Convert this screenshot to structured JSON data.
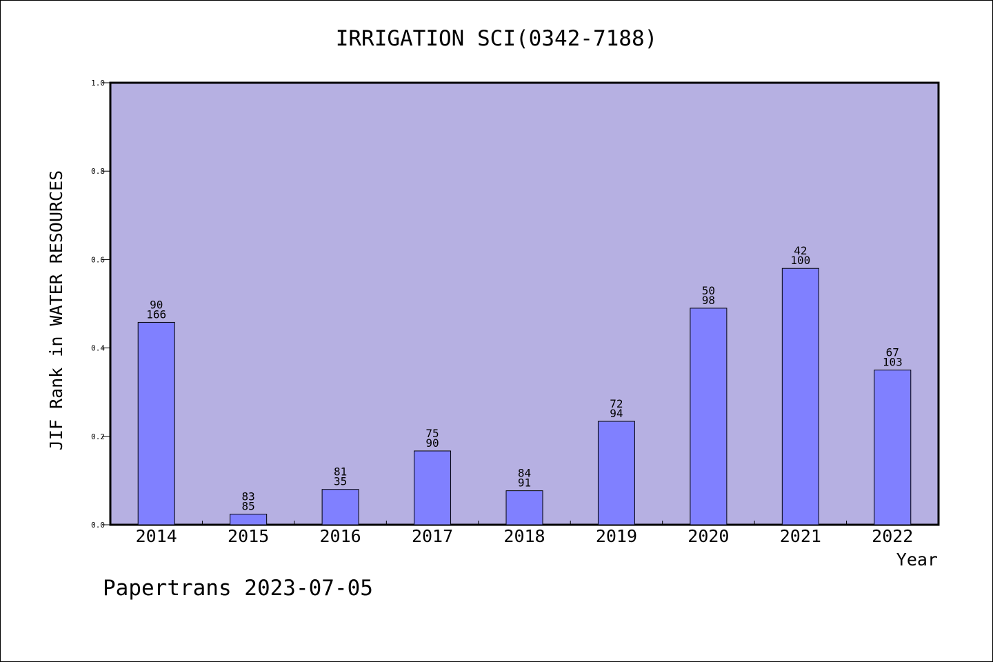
{
  "chart_data": {
    "type": "bar",
    "title": "IRRIGATION SCI(0342-7188)",
    "xlabel": "Year",
    "ylabel": "JIF Rank in WATER RESOURCES",
    "categories": [
      "2014",
      "2015",
      "2016",
      "2017",
      "2018",
      "2019",
      "2020",
      "2021",
      "2022"
    ],
    "values": [
      0.458,
      0.024,
      0.08,
      0.167,
      0.077,
      0.234,
      0.49,
      0.58,
      0.35
    ],
    "bar_labels_top": [
      "90",
      "83",
      "81",
      "75",
      "84",
      "72",
      "50",
      "42",
      "67"
    ],
    "bar_labels_bottom": [
      "166",
      "85",
      "35",
      "90",
      "91",
      "94",
      "98",
      "100",
      "103"
    ],
    "ylim": [
      0.0,
      1.0
    ],
    "yticks": [
      "0.0",
      "0.2",
      "0.4",
      "0.6",
      "0.8",
      "1.0"
    ],
    "grid": false,
    "colors": {
      "plot_background": "#b6b0e2",
      "bar_fill": "#8080ff",
      "bar_stroke": "#000000"
    }
  },
  "footer": {
    "credit": "Papertrans 2023-07-05"
  }
}
